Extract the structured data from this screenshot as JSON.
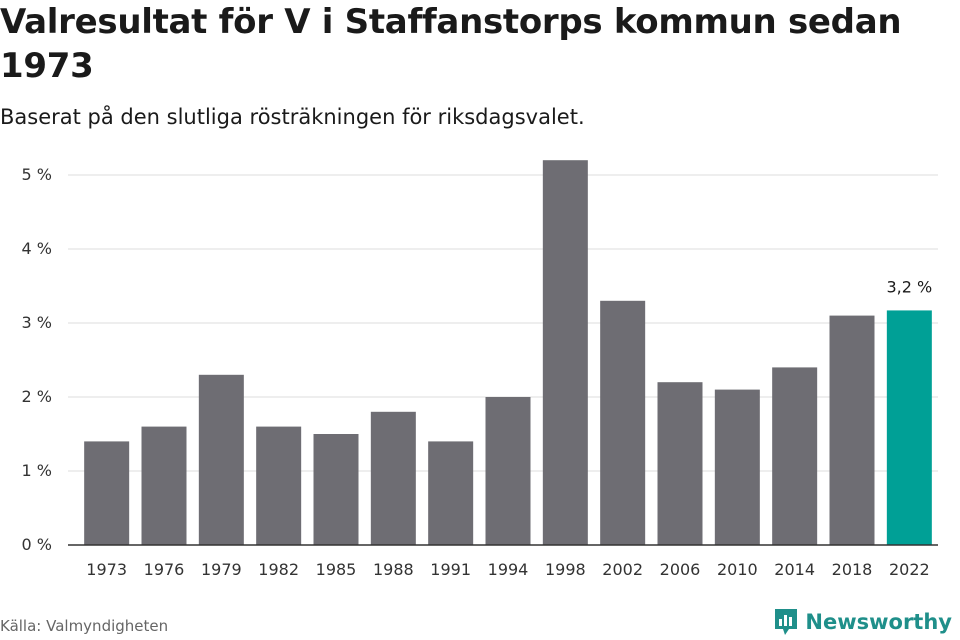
{
  "title": "Valresultat för V i Staffanstorps kommun sedan 1973",
  "subtitle": "Baserat på den slutliga rösträkningen för riksdagsvalet.",
  "source": "Källa: Valmyndigheten",
  "brand": "Newsworthy",
  "colors": {
    "bar": "#6e6d73",
    "highlight": "#00a096",
    "grid": "#dcdcdc",
    "axis": "#333333",
    "brand": "#1f8f8a"
  },
  "chart_data": {
    "type": "bar",
    "categories": [
      "1973",
      "1976",
      "1979",
      "1982",
      "1985",
      "1988",
      "1991",
      "1994",
      "1998",
      "2002",
      "2006",
      "2010",
      "2014",
      "2018",
      "2022"
    ],
    "values": [
      1.4,
      1.6,
      2.3,
      1.6,
      1.5,
      1.8,
      1.4,
      2.0,
      5.2,
      3.3,
      2.2,
      2.1,
      2.4,
      3.1,
      3.17
    ],
    "highlight_index": 14,
    "annotation": {
      "index": 14,
      "text": "3,2 %"
    },
    "yticks": [
      0,
      1,
      2,
      3,
      4,
      5
    ],
    "ytick_labels": [
      "0 %",
      "1 %",
      "2 %",
      "3 %",
      "4 %",
      "5 %"
    ],
    "ylim": [
      0,
      5.25
    ],
    "xlabel": "",
    "ylabel": "",
    "grid": true,
    "legend": "none"
  }
}
